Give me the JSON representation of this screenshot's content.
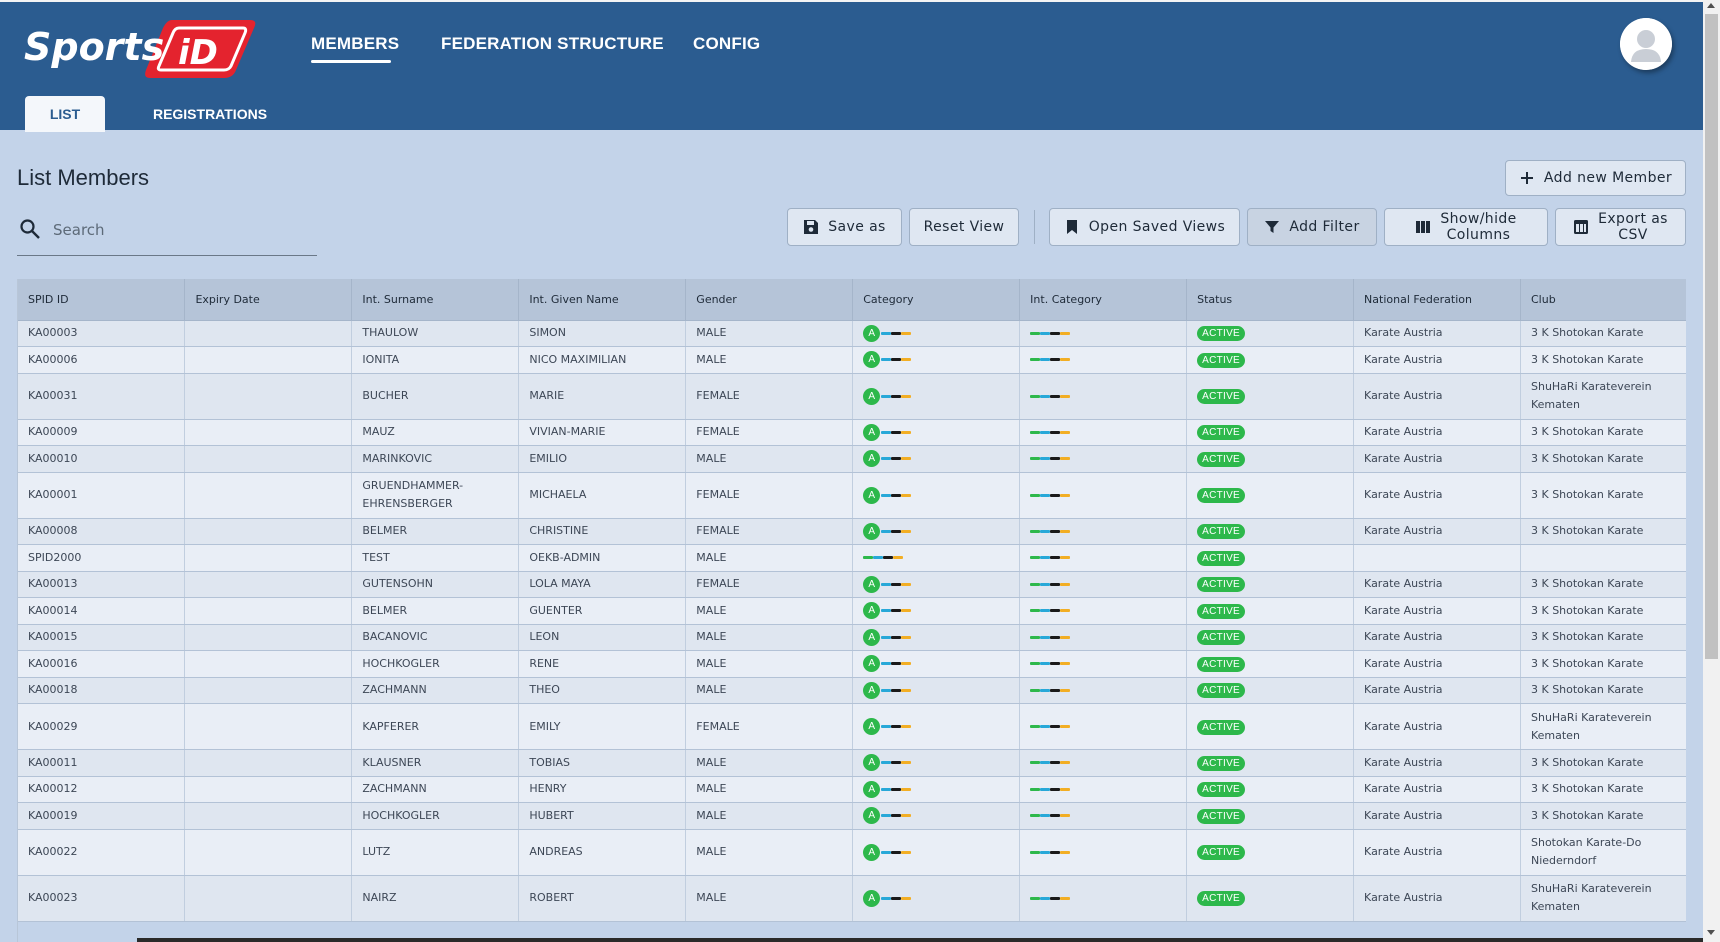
{
  "app": {
    "logo_text": "SportsID",
    "nav": [
      {
        "label": "MEMBERS"
      },
      {
        "label": "FEDERATION STRUCTURE"
      },
      {
        "label": "CONFIG"
      }
    ],
    "subtabs": [
      {
        "label": "LIST"
      },
      {
        "label": "REGISTRATIONS"
      }
    ]
  },
  "page": {
    "title": "List Members",
    "add_button": "Add new Member",
    "search_placeholder": "Search"
  },
  "toolbar": {
    "save_as": "Save as",
    "reset_view": "Reset View",
    "open_saved_views": "Open Saved Views",
    "add_filter": "Add Filter",
    "show_hide_1": "Show/hide",
    "show_hide_2": "Columns",
    "export_1": "Export as",
    "export_2": "CSV"
  },
  "colors": {
    "header_bg": "#2b5c90",
    "page_bg": "#c3d3e9",
    "status_active": "#2db84b",
    "logo_red": "#e4232e"
  },
  "table": {
    "columns": [
      "SPID ID",
      "Expiry Date",
      "Int. Surname",
      "Int. Given Name",
      "Gender",
      "Category",
      "Int. Category",
      "Status",
      "National Federation",
      "Club"
    ],
    "rows": [
      {
        "id": "KA00003",
        "expiry": "",
        "surname": "THAULOW",
        "given": "SIMON",
        "gender": "MALE",
        "cat": "A",
        "status": "ACTIVE",
        "fed": "Karate Austria",
        "club": "3 K Shotokan Karate"
      },
      {
        "id": "KA00006",
        "expiry": "",
        "surname": "IONITA",
        "given": "NICO MAXIMILIAN",
        "gender": "MALE",
        "cat": "A",
        "status": "ACTIVE",
        "fed": "Karate Austria",
        "club": "3 K Shotokan Karate"
      },
      {
        "id": "KA00031",
        "expiry": "",
        "surname": "BUCHER",
        "given": "MARIE",
        "gender": "FEMALE",
        "cat": "A",
        "status": "ACTIVE",
        "fed": "Karate Austria",
        "club": "ShuHaRi Karateverein Kematen"
      },
      {
        "id": "KA00009",
        "expiry": "",
        "surname": "MAUZ",
        "given": "VIVIAN-MARIE",
        "gender": "FEMALE",
        "cat": "A",
        "status": "ACTIVE",
        "fed": "Karate Austria",
        "club": "3 K Shotokan Karate"
      },
      {
        "id": "KA00010",
        "expiry": "",
        "surname": "MARINKOVIC",
        "given": "EMILIO",
        "gender": "MALE",
        "cat": "A",
        "status": "ACTIVE",
        "fed": "Karate Austria",
        "club": "3 K Shotokan Karate"
      },
      {
        "id": "KA00001",
        "expiry": "",
        "surname": "GRUENDHAMMER-EHRENSBERGER",
        "given": "MICHAELA",
        "gender": "FEMALE",
        "cat": "A",
        "status": "ACTIVE",
        "fed": "Karate Austria",
        "club": "3 K Shotokan Karate"
      },
      {
        "id": "KA00008",
        "expiry": "",
        "surname": "BELMER",
        "given": "CHRISTINE",
        "gender": "FEMALE",
        "cat": "A",
        "status": "ACTIVE",
        "fed": "Karate Austria",
        "club": "3 K Shotokan Karate"
      },
      {
        "id": "SPID2000",
        "expiry": "",
        "surname": "TEST",
        "given": "OEKB-ADMIN",
        "gender": "MALE",
        "cat": "",
        "status": "ACTIVE",
        "fed": "",
        "club": ""
      },
      {
        "id": "KA00013",
        "expiry": "",
        "surname": "GUTENSOHN",
        "given": "LOLA MAYA",
        "gender": "FEMALE",
        "cat": "A",
        "status": "ACTIVE",
        "fed": "Karate Austria",
        "club": "3 K Shotokan Karate"
      },
      {
        "id": "KA00014",
        "expiry": "",
        "surname": "BELMER",
        "given": "GUENTER",
        "gender": "MALE",
        "cat": "A",
        "status": "ACTIVE",
        "fed": "Karate Austria",
        "club": "3 K Shotokan Karate"
      },
      {
        "id": "KA00015",
        "expiry": "",
        "surname": "BACANOVIC",
        "given": "LEON",
        "gender": "MALE",
        "cat": "A",
        "status": "ACTIVE",
        "fed": "Karate Austria",
        "club": "3 K Shotokan Karate"
      },
      {
        "id": "KA00016",
        "expiry": "",
        "surname": "HOCHKOGLER",
        "given": "RENE",
        "gender": "MALE",
        "cat": "A",
        "status": "ACTIVE",
        "fed": "Karate Austria",
        "club": "3 K Shotokan Karate"
      },
      {
        "id": "KA00018",
        "expiry": "",
        "surname": "ZACHMANN",
        "given": "THEO",
        "gender": "MALE",
        "cat": "A",
        "status": "ACTIVE",
        "fed": "Karate Austria",
        "club": "3 K Shotokan Karate"
      },
      {
        "id": "KA00029",
        "expiry": "",
        "surname": "KAPFERER",
        "given": "EMILY",
        "gender": "FEMALE",
        "cat": "A",
        "status": "ACTIVE",
        "fed": "Karate Austria",
        "club": "ShuHaRi Karateverein Kematen"
      },
      {
        "id": "KA00011",
        "expiry": "",
        "surname": "KLAUSNER",
        "given": "TOBIAS",
        "gender": "MALE",
        "cat": "A",
        "status": "ACTIVE",
        "fed": "Karate Austria",
        "club": "3 K Shotokan Karate"
      },
      {
        "id": "KA00012",
        "expiry": "",
        "surname": "ZACHMANN",
        "given": "HENRY",
        "gender": "MALE",
        "cat": "A",
        "status": "ACTIVE",
        "fed": "Karate Austria",
        "club": "3 K Shotokan Karate"
      },
      {
        "id": "KA00019",
        "expiry": "",
        "surname": "HOCHKOGLER",
        "given": "HUBERT",
        "gender": "MALE",
        "cat": "A",
        "status": "ACTIVE",
        "fed": "Karate Austria",
        "club": "3 K Shotokan Karate"
      },
      {
        "id": "KA00022",
        "expiry": "",
        "surname": "LUTZ",
        "given": "ANDREAS",
        "gender": "MALE",
        "cat": "A",
        "status": "ACTIVE",
        "fed": "Karate Austria",
        "club": "Shotokan Karate-Do Niederndorf"
      },
      {
        "id": "KA00023",
        "expiry": "",
        "surname": "NAIRZ",
        "given": "ROBERT",
        "gender": "MALE",
        "cat": "A",
        "status": "ACTIVE",
        "fed": "Karate Austria",
        "club": "ShuHaRi Karateverein Kematen"
      }
    ]
  }
}
